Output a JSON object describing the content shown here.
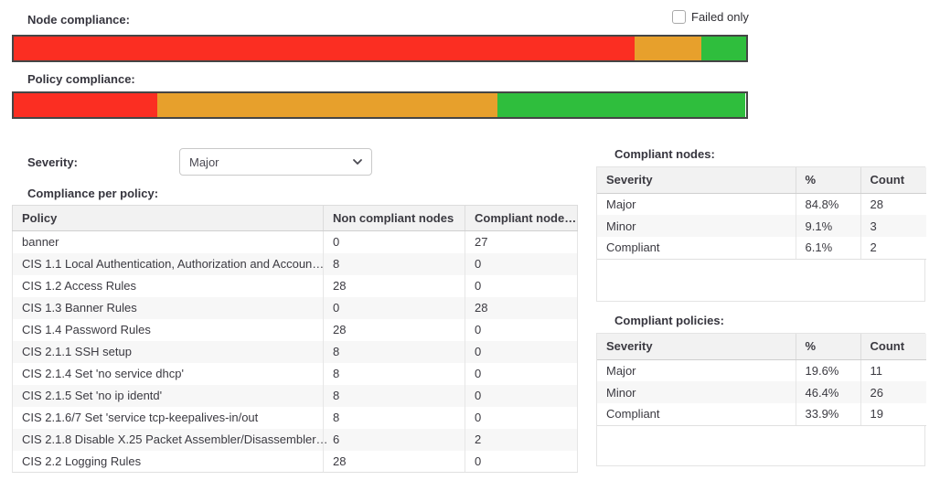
{
  "colors": {
    "major": "#fb2e22",
    "minor": "#e7a02c",
    "compliant": "#2fbe3d"
  },
  "node_compliance": {
    "label": "Node compliance:",
    "segments": [
      {
        "name": "major",
        "color": "#fb2e22",
        "pct": 84.8
      },
      {
        "name": "minor",
        "color": "#e7a02c",
        "pct": 9.1
      },
      {
        "name": "compliant",
        "color": "#2fbe3d",
        "pct": 6.1
      }
    ]
  },
  "policy_compliance": {
    "label": "Policy compliance:",
    "segments": [
      {
        "name": "major",
        "color": "#fb2e22",
        "pct": 19.6
      },
      {
        "name": "minor",
        "color": "#e7a02c",
        "pct": 46.4
      },
      {
        "name": "compliant",
        "color": "#2fbe3d",
        "pct": 33.9
      }
    ]
  },
  "failed_only": {
    "label": "Failed only",
    "checked": false
  },
  "severity_filter": {
    "label": "Severity:",
    "value": "Major"
  },
  "compliance_per_policy": {
    "title": "Compliance per policy:",
    "columns": [
      "Policy",
      "Non compliant nodes",
      "Compliant node…"
    ],
    "rows": [
      [
        "banner",
        "0",
        "27"
      ],
      [
        "CIS 1.1 Local Authentication, Authorization and Accoun…",
        "8",
        "0"
      ],
      [
        "CIS 1.2 Access Rules",
        "28",
        "0"
      ],
      [
        "CIS 1.3 Banner Rules",
        "0",
        "28"
      ],
      [
        "CIS 1.4 Password Rules",
        "28",
        "0"
      ],
      [
        "CIS 2.1.1 SSH setup",
        "8",
        "0"
      ],
      [
        "CIS 2.1.4 Set 'no service dhcp'",
        "8",
        "0"
      ],
      [
        "CIS 2.1.5 Set 'no ip identd'",
        "8",
        "0"
      ],
      [
        "CIS 2.1.6/7 Set 'service tcp-keepalives-in/out",
        "8",
        "0"
      ],
      [
        "CIS 2.1.8 Disable X.25 Packet Assembler/Disassembler…",
        "6",
        "2"
      ],
      [
        "CIS 2.2 Logging Rules",
        "28",
        "0"
      ]
    ]
  },
  "compliant_nodes": {
    "title": "Compliant nodes:",
    "columns": [
      "Severity",
      "%",
      "Count"
    ],
    "rows": [
      [
        "Major",
        "84.8%",
        "28"
      ],
      [
        "Minor",
        "9.1%",
        "3"
      ],
      [
        "Compliant",
        "6.1%",
        "2"
      ]
    ]
  },
  "compliant_policies": {
    "title": "Compliant policies:",
    "columns": [
      "Severity",
      "%",
      "Count"
    ],
    "rows": [
      [
        "Major",
        "19.6%",
        "11"
      ],
      [
        "Minor",
        "46.4%",
        "26"
      ],
      [
        "Compliant",
        "33.9%",
        "19"
      ]
    ]
  }
}
